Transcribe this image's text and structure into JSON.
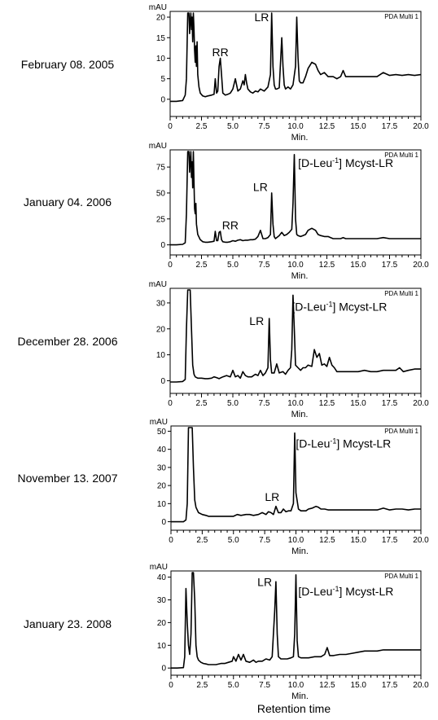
{
  "global_xlabel": "Retention time",
  "chart_data": [
    {
      "type": "line",
      "date": "February 08. 2005",
      "ylabel": "mAU",
      "xlabel": "Min.",
      "tag": "PDA Multi 1",
      "ylim": [
        -3,
        21
      ],
      "yticks": [
        0,
        5,
        10,
        15,
        20
      ],
      "xlim": [
        0,
        20
      ],
      "xticks": [
        "0",
        "2.5",
        "5.0",
        "7.5",
        "10.0",
        "12.5",
        "15.0",
        "17.5",
        "20.0"
      ],
      "peak_labels": [
        {
          "text": "RR",
          "x": 4.0,
          "y": 10.5
        },
        {
          "text": "LR",
          "x": 7.3,
          "y": 19.0
        }
      ],
      "series": [
        {
          "x": [
            0,
            0.5,
            1.0,
            1.2,
            1.3,
            1.4,
            1.5,
            1.55,
            1.6,
            1.65,
            1.7,
            1.75,
            1.8,
            1.85,
            1.9,
            1.95,
            2.0,
            2.05,
            2.1,
            2.15,
            2.2,
            2.3,
            2.4,
            2.6,
            2.8,
            3.0,
            3.3,
            3.5,
            3.6,
            3.7,
            3.8,
            3.9,
            4.0,
            4.1,
            4.2,
            4.4,
            4.6,
            4.8,
            5.0,
            5.2,
            5.3,
            5.4,
            5.6,
            5.8,
            5.9,
            6.0,
            6.1,
            6.2,
            6.4,
            6.6,
            6.8,
            7.0,
            7.2,
            7.5,
            7.8,
            8.0,
            8.1,
            8.2,
            8.3,
            8.4,
            8.5,
            8.7,
            8.9,
            9.0,
            9.1,
            9.2,
            9.4,
            9.6,
            9.8,
            10.0,
            10.1,
            10.2,
            10.3,
            10.4,
            10.6,
            10.8,
            11.0,
            11.3,
            11.6,
            11.8,
            12.0,
            12.3,
            12.6,
            12.8,
            13.0,
            13.3,
            13.6,
            13.8,
            14.0,
            14.5,
            15.0,
            15.5,
            16.0,
            16.5,
            17.0,
            17.5,
            18.0,
            18.5,
            19.0,
            19.5,
            20.0
          ],
          "y": [
            -0.5,
            -0.5,
            -0.3,
            1.0,
            5.0,
            21.0,
            21.0,
            16.0,
            19.0,
            21.0,
            17.0,
            20.0,
            14.0,
            21.0,
            17.0,
            12.0,
            9.0,
            13.0,
            8.0,
            14.0,
            6.0,
            3.0,
            1.5,
            0.8,
            0.6,
            0.8,
            1.0,
            1.2,
            5.0,
            1.5,
            2.0,
            8.0,
            10.0,
            6.0,
            1.5,
            1.0,
            1.2,
            1.5,
            2.5,
            5.0,
            3.5,
            2.0,
            2.5,
            4.5,
            3.5,
            6.0,
            4.0,
            2.5,
            1.8,
            1.5,
            2.0,
            1.8,
            2.5,
            2.0,
            3.0,
            6.0,
            21.0,
            8.0,
            3.5,
            2.5,
            2.5,
            2.8,
            15.0,
            8.0,
            3.5,
            2.5,
            3.0,
            2.5,
            3.5,
            8.0,
            20.0,
            10.0,
            4.5,
            4.0,
            4.0,
            5.5,
            7.5,
            9.0,
            8.5,
            7.0,
            6.0,
            6.5,
            5.5,
            5.5,
            5.5,
            5.0,
            5.5,
            7.0,
            5.5,
            5.5,
            5.5,
            5.5,
            5.5,
            5.5,
            6.5,
            5.8,
            6.0,
            5.8,
            6.0,
            5.8,
            6.0
          ]
        }
      ]
    },
    {
      "type": "line",
      "date": "January 04. 2006",
      "ylabel": "mAU",
      "xlabel": "Min.",
      "tag": "PDA Multi 1",
      "ylim": [
        -5,
        90
      ],
      "yticks": [
        0,
        25,
        50,
        75
      ],
      "xlim": [
        0,
        20
      ],
      "xticks": [
        "0",
        "2.5",
        "5.0",
        "7.5",
        "10.0",
        "12.5",
        "15.0",
        "17.5",
        "20.0"
      ],
      "peak_labels": [
        {
          "text": "RR",
          "x": 4.8,
          "y": 15.0
        },
        {
          "text": "LR",
          "x": 7.2,
          "y": 52.0
        },
        {
          "text": "[D-Leu-1] Mcyst-LR",
          "x": 14.0,
          "y": 75.0,
          "sup": true
        }
      ],
      "series": [
        {
          "x": [
            0,
            0.5,
            1.0,
            1.2,
            1.3,
            1.4,
            1.5,
            1.55,
            1.6,
            1.65,
            1.7,
            1.75,
            1.8,
            1.85,
            1.9,
            1.95,
            2.0,
            2.05,
            2.1,
            2.2,
            2.4,
            2.6,
            2.8,
            3.0,
            3.3,
            3.5,
            3.6,
            3.7,
            3.8,
            3.9,
            4.0,
            4.1,
            4.2,
            4.4,
            4.6,
            4.8,
            5.0,
            5.2,
            5.4,
            5.6,
            5.8,
            6.0,
            6.2,
            6.4,
            6.6,
            6.8,
            7.0,
            7.2,
            7.4,
            7.6,
            7.8,
            8.0,
            8.1,
            8.2,
            8.3,
            8.4,
            8.5,
            8.7,
            8.9,
            9.1,
            9.3,
            9.5,
            9.7,
            9.8,
            9.9,
            10.0,
            10.1,
            10.2,
            10.4,
            10.6,
            10.8,
            11.0,
            11.3,
            11.6,
            11.8,
            12.0,
            12.3,
            12.6,
            12.8,
            13.0,
            13.3,
            13.6,
            13.8,
            14.0,
            14.5,
            15.0,
            15.5,
            16.0,
            16.5,
            17.0,
            17.5,
            18.0,
            18.5,
            19.0,
            19.5,
            20.0
          ],
          "y": [
            0.0,
            0.0,
            0.5,
            2.0,
            30.0,
            90.0,
            90.0,
            70.0,
            80.0,
            90.0,
            65.0,
            80.0,
            55.0,
            90.0,
            60.0,
            35.0,
            30.0,
            40.0,
            20.0,
            10.0,
            5.0,
            3.0,
            2.5,
            2.5,
            3.0,
            3.5,
            13.0,
            4.0,
            4.0,
            12.0,
            13.0,
            5.0,
            3.0,
            2.5,
            2.5,
            3.0,
            4.0,
            3.5,
            4.5,
            5.0,
            4.0,
            4.5,
            4.5,
            5.0,
            5.0,
            5.5,
            8.0,
            14.0,
            6.0,
            6.0,
            7.0,
            10.0,
            50.0,
            20.0,
            8.0,
            6.0,
            7.0,
            9.0,
            12.0,
            9.0,
            10.0,
            12.0,
            15.0,
            40.0,
            87.0,
            25.0,
            10.0,
            9.0,
            8.0,
            9.0,
            10.0,
            14.0,
            16.0,
            14.0,
            10.0,
            9.0,
            8.0,
            8.0,
            7.0,
            6.0,
            6.0,
            6.0,
            7.0,
            6.0,
            6.0,
            6.0,
            6.0,
            6.0,
            6.0,
            7.0,
            6.0,
            6.0,
            6.0,
            6.0,
            6.0,
            6.0
          ]
        }
      ]
    },
    {
      "type": "line",
      "date": "December 28. 2006",
      "ylabel": "mAU",
      "xlabel": "Min.",
      "tag": "PDA Multi 1",
      "ylim": [
        -3,
        35
      ],
      "yticks": [
        0,
        10,
        20,
        30
      ],
      "xlim": [
        0,
        20
      ],
      "xticks": [
        "0",
        "2.5",
        "5.0",
        "7.5",
        "10.0",
        "12.5",
        "15.0",
        "17.5",
        "20.0"
      ],
      "peak_labels": [
        {
          "text": "LR",
          "x": 6.9,
          "y": 21.5
        },
        {
          "text": "[D-Leu-1] Mcyst-LR",
          "x": 13.5,
          "y": 27.0,
          "sup": true
        }
      ],
      "series": [
        {
          "x": [
            0,
            0.5,
            1.0,
            1.2,
            1.3,
            1.4,
            1.5,
            1.6,
            1.7,
            1.8,
            1.9,
            2.0,
            2.2,
            2.5,
            2.8,
            3.0,
            3.3,
            3.5,
            3.7,
            3.9,
            4.2,
            4.5,
            4.8,
            5.0,
            5.2,
            5.4,
            5.6,
            5.8,
            6.0,
            6.2,
            6.5,
            6.8,
            7.0,
            7.2,
            7.4,
            7.6,
            7.8,
            7.9,
            8.0,
            8.1,
            8.3,
            8.5,
            8.7,
            9.0,
            9.2,
            9.4,
            9.6,
            9.7,
            9.8,
            9.9,
            10.0,
            10.2,
            10.4,
            10.6,
            10.8,
            11.0,
            11.3,
            11.5,
            11.7,
            11.9,
            12.1,
            12.3,
            12.5,
            12.7,
            12.9,
            13.1,
            13.3,
            13.6,
            14.0,
            14.5,
            15.0,
            15.5,
            16.0,
            16.5,
            17.0,
            17.5,
            18.0,
            18.3,
            18.6,
            19.0,
            19.5,
            20.0
          ],
          "y": [
            -0.5,
            -0.5,
            -0.3,
            0.5,
            20.0,
            35.0,
            35.0,
            35.0,
            20.0,
            6.0,
            2.5,
            1.5,
            1.0,
            1.0,
            0.8,
            0.8,
            1.0,
            1.5,
            1.2,
            0.8,
            1.5,
            2.0,
            1.5,
            4.0,
            1.5,
            2.0,
            1.0,
            3.5,
            2.0,
            1.5,
            1.5,
            2.5,
            2.0,
            4.0,
            2.0,
            3.0,
            5.0,
            24.0,
            8.0,
            3.0,
            3.0,
            6.5,
            3.0,
            3.5,
            2.5,
            4.0,
            5.0,
            12.0,
            33.0,
            20.0,
            6.0,
            5.0,
            4.0,
            5.0,
            5.0,
            6.0,
            5.5,
            12.0,
            9.0,
            10.5,
            6.0,
            6.5,
            5.5,
            9.0,
            6.0,
            5.0,
            3.5,
            3.5,
            3.5,
            3.5,
            3.5,
            4.0,
            3.5,
            3.5,
            4.0,
            4.0,
            4.0,
            5.0,
            3.5,
            4.0,
            4.5,
            4.5
          ]
        }
      ]
    },
    {
      "type": "line",
      "date": "November 13. 2007",
      "ylabel": "mAU",
      "xlabel": "Min.",
      "tag": "PDA Multi 1",
      "ylim": [
        -2,
        52
      ],
      "yticks": [
        0,
        10,
        20,
        30,
        40,
        50
      ],
      "xlim": [
        0,
        20
      ],
      "xticks": [
        "0",
        "2.5",
        "5.0",
        "7.5",
        "10.0",
        "12.5",
        "15.0",
        "17.5",
        "20.0"
      ],
      "peak_labels": [
        {
          "text": "LR",
          "x": 8.1,
          "y": 11.5
        },
        {
          "text": "[D-Leu-1] Mcyst-LR",
          "x": 13.8,
          "y": 41.0,
          "sup": true
        }
      ],
      "series": [
        {
          "x": [
            0,
            0.5,
            1.0,
            1.2,
            1.3,
            1.4,
            1.5,
            1.6,
            1.7,
            1.8,
            1.9,
            2.0,
            2.2,
            2.5,
            2.8,
            3.0,
            3.5,
            4.0,
            4.5,
            5.0,
            5.3,
            5.6,
            6.0,
            6.3,
            6.6,
            7.0,
            7.3,
            7.6,
            7.8,
            8.0,
            8.2,
            8.4,
            8.6,
            8.8,
            9.0,
            9.2,
            9.4,
            9.6,
            9.8,
            9.9,
            10.0,
            10.2,
            10.4,
            10.6,
            10.8,
            11.0,
            11.3,
            11.6,
            11.8,
            12.0,
            12.3,
            12.6,
            13.0,
            13.5,
            14.0,
            14.5,
            15.0,
            15.5,
            16.0,
            16.5,
            17.0,
            17.5,
            18.0,
            18.5,
            19.0,
            19.5,
            20.0
          ],
          "y": [
            0.0,
            0.0,
            0.0,
            1.0,
            10.0,
            52.0,
            52.0,
            52.0,
            52.0,
            30.0,
            12.0,
            8.0,
            5.0,
            4.0,
            3.5,
            3.0,
            3.0,
            3.0,
            3.0,
            3.0,
            4.0,
            3.5,
            4.0,
            4.0,
            3.5,
            4.0,
            5.0,
            4.0,
            5.5,
            5.0,
            4.0,
            8.5,
            5.0,
            5.0,
            7.0,
            5.5,
            6.0,
            6.0,
            10.0,
            49.0,
            16.0,
            7.0,
            6.0,
            6.0,
            6.0,
            7.0,
            7.5,
            8.5,
            8.0,
            7.0,
            7.0,
            6.5,
            6.5,
            6.5,
            6.5,
            6.5,
            6.5,
            6.5,
            6.5,
            6.5,
            7.5,
            6.5,
            7.0,
            7.0,
            6.5,
            7.0,
            7.0
          ]
        }
      ]
    },
    {
      "type": "line",
      "date": "January 23. 2008",
      "ylabel": "mAU",
      "xlabel": "Min.",
      "tag": "PDA Multi 1",
      "ylim": [
        -1,
        42
      ],
      "yticks": [
        0,
        10,
        20,
        30,
        40
      ],
      "xlim": [
        0,
        20
      ],
      "xticks": [
        "0",
        "2.5",
        "5.0",
        "7.5",
        "10.0",
        "12.5",
        "15.0",
        "17.5",
        "20.0"
      ],
      "peak_labels": [
        {
          "text": "LR",
          "x": 7.5,
          "y": 36.0
        },
        {
          "text": "[D-Leu-1] Mcyst-LR",
          "x": 14.0,
          "y": 32.0,
          "sup": true
        }
      ],
      "series": [
        {
          "x": [
            0,
            0.5,
            1.0,
            1.1,
            1.2,
            1.3,
            1.4,
            1.5,
            1.6,
            1.7,
            1.8,
            1.9,
            2.0,
            2.1,
            2.2,
            2.4,
            2.6,
            2.8,
            3.0,
            3.3,
            3.6,
            4.0,
            4.3,
            4.6,
            4.9,
            5.0,
            5.2,
            5.4,
            5.6,
            5.8,
            6.0,
            6.3,
            6.6,
            6.8,
            7.0,
            7.3,
            7.6,
            7.9,
            8.1,
            8.3,
            8.4,
            8.5,
            8.6,
            8.8,
            9.0,
            9.3,
            9.6,
            9.8,
            9.9,
            10.0,
            10.1,
            10.2,
            10.4,
            10.7,
            11.0,
            11.5,
            12.0,
            12.3,
            12.5,
            12.7,
            13.0,
            13.5,
            14.0,
            14.5,
            15.0,
            15.5,
            16.0,
            16.5,
            17.0,
            17.5,
            18.0,
            18.5,
            19.0,
            19.5,
            20.0
          ],
          "y": [
            0.0,
            0.0,
            0.2,
            5.0,
            35.0,
            20.0,
            10.0,
            6.0,
            15.0,
            42.0,
            42.0,
            30.0,
            10.0,
            5.0,
            3.5,
            2.5,
            2.0,
            1.8,
            1.5,
            1.5,
            1.5,
            2.0,
            2.0,
            2.5,
            3.0,
            5.0,
            3.0,
            6.0,
            3.5,
            6.0,
            3.0,
            2.5,
            3.5,
            2.5,
            3.0,
            3.0,
            4.0,
            3.5,
            5.0,
            25.0,
            38.0,
            15.0,
            5.0,
            4.0,
            4.0,
            4.0,
            4.5,
            5.0,
            15.0,
            41.0,
            12.0,
            5.0,
            4.5,
            4.5,
            4.5,
            5.0,
            5.0,
            6.0,
            9.0,
            5.5,
            5.5,
            6.0,
            6.0,
            6.5,
            7.0,
            7.5,
            7.5,
            7.5,
            8.0,
            8.0,
            8.0,
            8.0,
            8.0,
            8.0,
            8.0
          ]
        }
      ]
    }
  ]
}
